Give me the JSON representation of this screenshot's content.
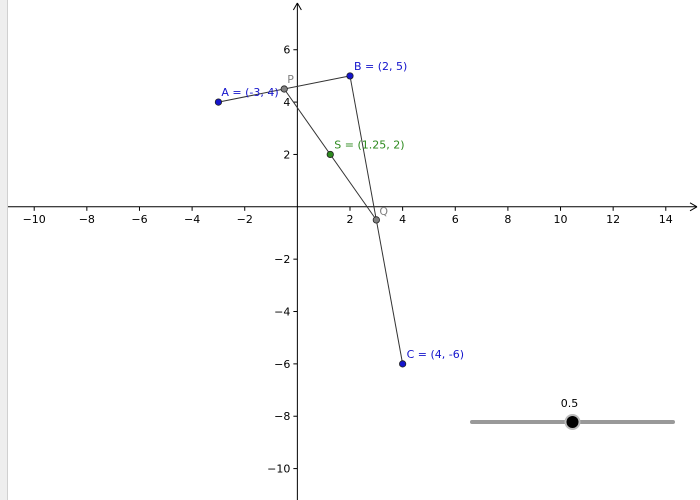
{
  "view": {
    "x_range": [
      -11.3,
      15.3
    ],
    "y_range": [
      -11.2,
      7.9
    ],
    "x_ticks": [
      -10,
      -8,
      -6,
      -4,
      -2,
      2,
      4,
      6,
      8,
      10,
      12,
      14
    ],
    "y_ticks": [
      6,
      4,
      2,
      -2,
      -4,
      -6,
      -8,
      -10
    ],
    "x_tick_labels": [
      "−10",
      "−8",
      "−6",
      "−4",
      "−2",
      "2",
      "4",
      "6",
      "8",
      "10",
      "12",
      "14"
    ],
    "y_tick_labels": [
      "6",
      "4",
      "2",
      "−2",
      "−4",
      "−6",
      "−8",
      "−10"
    ]
  },
  "colors": {
    "defined_point": "#1414cc",
    "dependent_point": "#808080",
    "midpoint": "#2d8a1e",
    "segment": "#333333",
    "axis": "#000000",
    "slider_track": "#999999",
    "slider_knob": "#000000"
  },
  "points": [
    {
      "id": "A",
      "x": -3,
      "y": 4,
      "label": "A = (-3, 4)",
      "kind": "defined"
    },
    {
      "id": "B",
      "x": 2,
      "y": 5,
      "label": "B = (2, 5)",
      "kind": "defined"
    },
    {
      "id": "C",
      "x": 4,
      "y": -6,
      "label": "C = (4, -6)",
      "kind": "defined"
    },
    {
      "id": "P",
      "x": -0.5,
      "y": 4.5,
      "label": "P",
      "kind": "dependent"
    },
    {
      "id": "Q",
      "x": 3,
      "y": -0.5,
      "label": "Q",
      "kind": "dependent"
    },
    {
      "id": "S",
      "x": 1.25,
      "y": 2,
      "label": "S = (1.25, 2)",
      "kind": "midpoint"
    }
  ],
  "segments": [
    {
      "from": "A",
      "to": "B"
    },
    {
      "from": "B",
      "to": "C"
    },
    {
      "from": "P",
      "to": "Q"
    }
  ],
  "slider": {
    "value": 0.5,
    "value_label": "0.5",
    "min": 0,
    "max": 1
  }
}
